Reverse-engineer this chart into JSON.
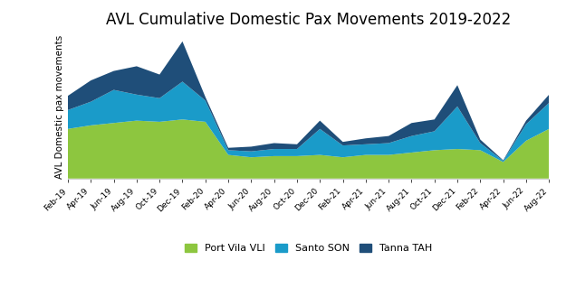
{
  "title": "AVL Cumulative Domestic Pax Movements 2019-2022",
  "ylabel": "AVL Domestic pax movements",
  "background_color": "#ffffff",
  "grid_color": "#d0d0d0",
  "colors": {
    "port_vila": "#8dc63f",
    "santo": "#1a9bc9",
    "tanna": "#1f4e79"
  },
  "legend": [
    "Port Vila VLI",
    "Santo SON",
    "Tanna TAH"
  ],
  "x_labels": [
    "Feb-19",
    "Apr-19",
    "Jun-19",
    "Aug-19",
    "Oct-19",
    "Dec-19",
    "Feb-20",
    "Apr-20",
    "Jun-20",
    "Aug-20",
    "Oct-20",
    "Dec-20",
    "Feb-21",
    "Apr-21",
    "Jun-21",
    "Aug-21",
    "Oct-21",
    "Dec-21",
    "Feb-22",
    "Apr-22",
    "Jun-22",
    "Aug-22"
  ],
  "port_vila": [
    4200,
    4500,
    4700,
    4900,
    4800,
    5000,
    4800,
    2000,
    1800,
    1900,
    1900,
    2000,
    1800,
    2000,
    2000,
    2200,
    2400,
    2500,
    2400,
    1400,
    3200,
    4200
  ],
  "santo": [
    1600,
    2000,
    2800,
    2200,
    2000,
    3200,
    1800,
    400,
    500,
    600,
    600,
    2200,
    1000,
    900,
    1000,
    1400,
    1600,
    3600,
    600,
    100,
    1400,
    2200
  ],
  "tanna": [
    1200,
    1800,
    1600,
    2400,
    2000,
    3400,
    300,
    200,
    400,
    500,
    400,
    700,
    300,
    500,
    600,
    1100,
    1000,
    1800,
    300,
    50,
    300,
    700
  ]
}
